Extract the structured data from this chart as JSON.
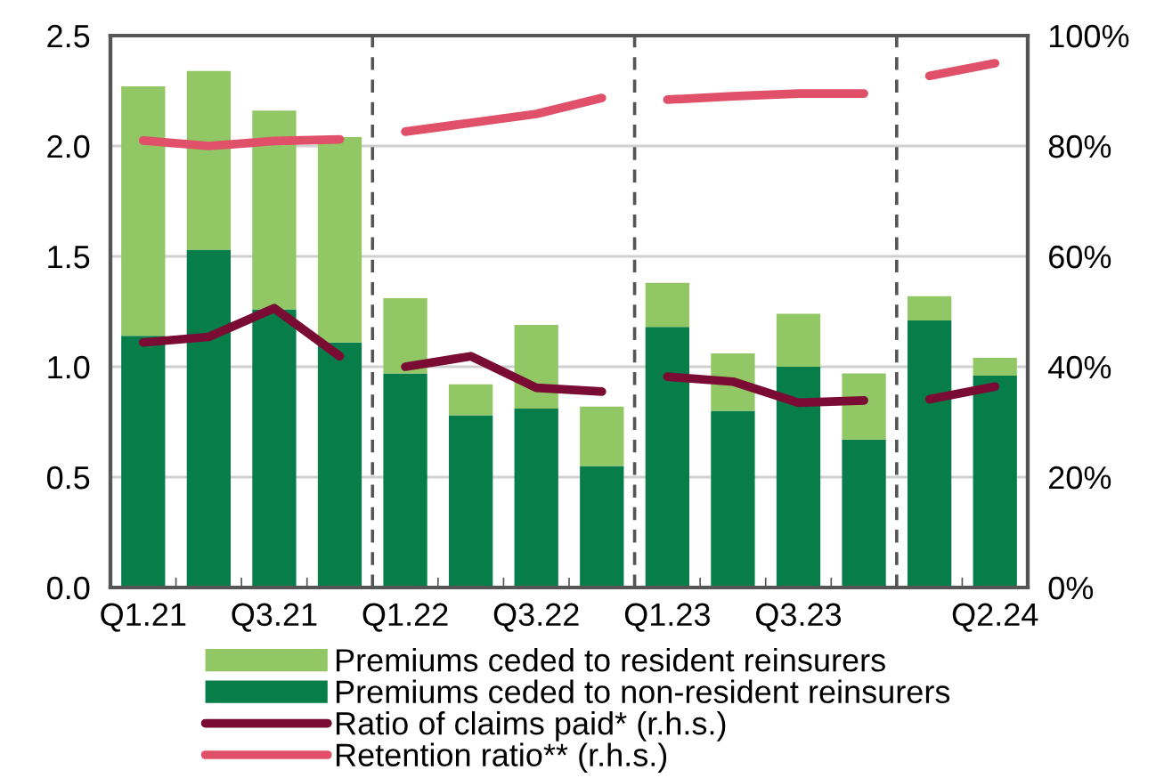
{
  "chart_data": {
    "type": "bar",
    "stacked": true,
    "categories": [
      "Q1.21",
      null,
      "Q3.21",
      null,
      "Q1.22",
      null,
      "Q3.22",
      null,
      "Q1.23",
      null,
      "Q3.23",
      null,
      null,
      "Q2.24"
    ],
    "series": [
      {
        "name": "Premiums ceded to non-resident reinsurers",
        "color": "#077d4a",
        "values": [
          1.14,
          1.53,
          1.26,
          1.11,
          0.97,
          0.78,
          0.81,
          0.55,
          1.18,
          0.8,
          1.0,
          0.67,
          1.21,
          0.96
        ]
      },
      {
        "name": "Premiums ceded to resident reinsurers",
        "color": "#92c765",
        "values": [
          1.13,
          0.81,
          0.9,
          0.93,
          0.34,
          0.14,
          0.38,
          0.27,
          0.2,
          0.26,
          0.24,
          0.3,
          0.11,
          0.08
        ]
      },
      {
        "name": "Ratio of claims paid* (r.h.s.)",
        "type": "line",
        "axis": "y2",
        "color": "#7a0b33",
        "values": [
          44.4,
          45.4,
          50.6,
          41.9,
          null,
          null,
          null,
          null,
          null,
          null,
          null,
          null,
          null,
          null
        ]
      },
      {
        "type": "line",
        "axis": "y2",
        "color": "#7a0b33",
        "values": [
          null,
          null,
          null,
          null,
          40.0,
          41.9,
          36.2,
          35.5,
          null,
          null,
          null,
          null,
          null,
          null
        ]
      },
      {
        "type": "line",
        "axis": "y2",
        "color": "#7a0b33",
        "values": [
          null,
          null,
          null,
          null,
          null,
          null,
          null,
          null,
          38.2,
          37.3,
          33.5,
          33.9,
          null,
          null
        ]
      },
      {
        "type": "line",
        "axis": "y2",
        "color": "#7a0b33",
        "values": [
          null,
          null,
          null,
          null,
          null,
          null,
          null,
          null,
          null,
          null,
          null,
          null,
          34.1,
          36.4
        ]
      },
      {
        "name": "Retention ratio** (r.h.s.)",
        "type": "line",
        "axis": "y2",
        "color": "#e05068",
        "values": [
          81.0,
          80.0,
          80.9,
          81.2,
          null,
          null,
          null,
          null,
          null,
          null,
          null,
          null,
          null,
          null
        ]
      },
      {
        "type": "line",
        "axis": "y2",
        "color": "#e05068",
        "values": [
          null,
          null,
          null,
          null,
          82.6,
          84.2,
          85.8,
          88.7,
          null,
          null,
          null,
          null,
          null,
          null
        ]
      },
      {
        "type": "line",
        "axis": "y2",
        "color": "#e05068",
        "values": [
          null,
          null,
          null,
          null,
          null,
          null,
          null,
          null,
          88.4,
          89.0,
          89.5,
          89.5,
          null,
          null
        ]
      },
      {
        "type": "line",
        "axis": "y2",
        "color": "#e05068",
        "values": [
          null,
          null,
          null,
          null,
          null,
          null,
          null,
          null,
          null,
          null,
          null,
          null,
          92.7,
          95.0
        ]
      }
    ],
    "ylim": [
      0,
      2.5
    ],
    "yticks": [
      {
        "value": 0,
        "label": "0.0"
      },
      {
        "value": 0.5,
        "label": "0.5"
      },
      {
        "value": 1,
        "label": "1.0"
      },
      {
        "value": 1.5,
        "label": "1.5"
      },
      {
        "value": 2,
        "label": "2.0"
      },
      {
        "value": 2.5,
        "label": "2.5"
      }
    ],
    "y2lim": [
      0,
      100
    ],
    "y2ticks": [
      {
        "value": 0,
        "label": "0%"
      },
      {
        "value": 20,
        "label": "20%"
      },
      {
        "value": 40,
        "label": "40%"
      },
      {
        "value": 60,
        "label": "60%"
      },
      {
        "value": 80,
        "label": "80%"
      },
      {
        "value": 100,
        "label": "100%"
      }
    ],
    "grid": "y",
    "legend": "bottom",
    "line_style": "solid",
    "marker": "none"
  }
}
